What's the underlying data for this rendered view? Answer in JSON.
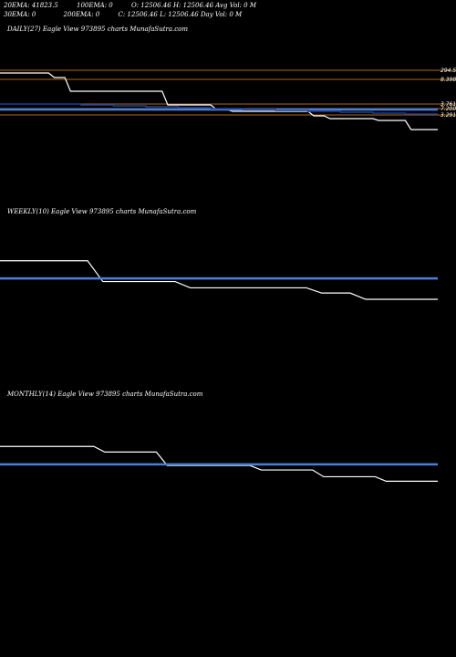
{
  "header": {
    "row1": {
      "ema20": "20EMA: 41823.5",
      "ema100": "100EMA: 0",
      "open": "O: 12506.46",
      "high": "H: 12506.46",
      "avg_vol": "Avg Vol: 0  M"
    },
    "row2": {
      "ema30": "30EMA: 0",
      "ema200": "200EMA: 0",
      "close": "C: 12506.46",
      "low": "L: 12506.46",
      "day_vol": "Day Vol: 0  M"
    }
  },
  "panels": {
    "daily": {
      "title": "DAILY(27) Eagle   View  973895 charts MunafaSutra.com"
    },
    "weekly": {
      "title": "WEEKLY(10) Eagle   View  973895 charts MunafaSutra.com"
    },
    "monthly": {
      "title": "MONTHLY(14) Eagle   View  973895 charts MunafaSutra.com"
    }
  },
  "colors": {
    "price": "#ffffff",
    "ema": "#4a7fd6",
    "ema_dark": "#1c3f9a",
    "level": "#a86a1a",
    "bg": "#000000"
  },
  "chart_data": [
    {
      "type": "line",
      "panel": "daily",
      "x": [
        1,
        2,
        3,
        4,
        5,
        6,
        7,
        8,
        9,
        10,
        11,
        12,
        13,
        14,
        15,
        16,
        17,
        18,
        19,
        20,
        21,
        22,
        23,
        24,
        25,
        26,
        27
      ],
      "series": [
        {
          "values": [
            100,
            100,
            100,
            99.5,
            98,
            98,
            98,
            98,
            98,
            98,
            96.5,
            96.5,
            96.5,
            96,
            95.8,
            95.8,
            95.8,
            95.8,
            95.8,
            95.3,
            95,
            95,
            95,
            94.8,
            94.8,
            93.8,
            93.8
          ]
        },
        {
          "values": [
            96,
            96,
            96,
            96,
            96,
            96,
            96,
            96,
            96,
            96,
            96,
            96,
            96,
            96,
            96,
            96,
            96,
            96,
            96,
            96,
            96,
            96,
            96,
            96,
            96,
            96,
            96
          ]
        },
        {
          "values": [
            96.6,
            96.6,
            96.6,
            96.6,
            96.6,
            96.5,
            96.5,
            96.4,
            96.4,
            96.3,
            96.3,
            96.2,
            96.2,
            96.1,
            96.1,
            96.0,
            96.0,
            95.9,
            95.9,
            95.8,
            95.8,
            95.7,
            95.7,
            95.6,
            95.6,
            95.5,
            95.5
          ]
        }
      ],
      "levels": [
        {
          "value": 100.3,
          "label": "294.5"
        },
        {
          "value": 99.3,
          "label": "8.3980"
        },
        {
          "value": 96.6,
          "label": "3.7615"
        },
        {
          "value": 96.1,
          "label": "7.2000"
        },
        {
          "value": 95.4,
          "label": "3.2913"
        }
      ],
      "ylim": [
        88,
        104
      ]
    },
    {
      "type": "line",
      "panel": "weekly",
      "x": [
        1,
        2,
        3,
        4,
        5,
        6,
        7,
        8,
        9,
        10
      ],
      "series": [
        {
          "values": [
            100,
            100,
            98,
            98,
            97.4,
            97.4,
            97.4,
            96.9,
            96.3,
            96.3
          ]
        },
        {
          "values": [
            98.3,
            98.3,
            98.3,
            98.3,
            98.3,
            98.3,
            98.3,
            98.3,
            98.3,
            98.3
          ]
        }
      ],
      "ylim": [
        90,
        104
      ]
    },
    {
      "type": "line",
      "panel": "monthly",
      "x": [
        1,
        2,
        3,
        4,
        5,
        6,
        7,
        8,
        9,
        10,
        11,
        12,
        13,
        14
      ],
      "series": [
        {
          "values": [
            100,
            100,
            100,
            99.5,
            99.5,
            98.3,
            98.3,
            98.3,
            97.9,
            97.9,
            97.3,
            97.3,
            96.9,
            96.9
          ]
        },
        {
          "values": [
            98.4,
            98.4,
            98.4,
            98.4,
            98.4,
            98.4,
            98.4,
            98.4,
            98.4,
            98.4,
            98.4,
            98.4,
            98.4,
            98.4
          ]
        }
      ],
      "ylim": [
        91,
        104
      ]
    }
  ]
}
